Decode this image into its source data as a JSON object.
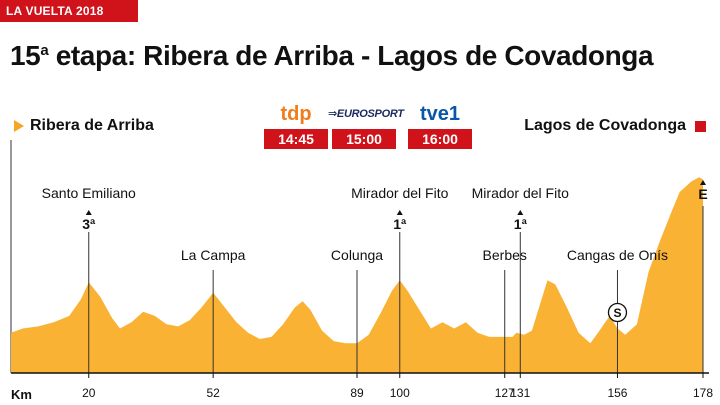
{
  "header": {
    "badge": "LA VUELTA 2018"
  },
  "title": {
    "number": "15",
    "ordinal": "a",
    "text": "etapa: Ribera de Arriba - Lagos de Covadonga"
  },
  "start": {
    "name": "Ribera de Arriba",
    "color": "#f5a623"
  },
  "finish": {
    "name": "Lagos de Covadonga",
    "color": "#d0121b"
  },
  "broadcasts": [
    {
      "logo": "tdp",
      "icon": "tdp-logo",
      "time": "14:45"
    },
    {
      "logo": "EUROSPORT",
      "icon": "eurosport-logo",
      "time": "15:00"
    },
    {
      "logo": "tve1",
      "icon": "tve1-logo",
      "time": "16:00"
    }
  ],
  "chart_data": {
    "type": "area",
    "xlabel": "Km",
    "xlim": [
      0,
      178
    ],
    "x_ticks": [
      20,
      52,
      89,
      100,
      127,
      131,
      156,
      178
    ],
    "fill_color": "#f9b233",
    "profile": [
      [
        0,
        13
      ],
      [
        3,
        15
      ],
      [
        7,
        16
      ],
      [
        11,
        18
      ],
      [
        15,
        21
      ],
      [
        18,
        29
      ],
      [
        20,
        37
      ],
      [
        23,
        30
      ],
      [
        26,
        20
      ],
      [
        28,
        15
      ],
      [
        31,
        18
      ],
      [
        34,
        23
      ],
      [
        37,
        21
      ],
      [
        40,
        17
      ],
      [
        43,
        16
      ],
      [
        46,
        19
      ],
      [
        49,
        25
      ],
      [
        52,
        32
      ],
      [
        55,
        25
      ],
      [
        58,
        18
      ],
      [
        61,
        13
      ],
      [
        64,
        10
      ],
      [
        67,
        11
      ],
      [
        70,
        17
      ],
      [
        73,
        25
      ],
      [
        75,
        28
      ],
      [
        77,
        24
      ],
      [
        80,
        14
      ],
      [
        83,
        9
      ],
      [
        86,
        8
      ],
      [
        89,
        8
      ],
      [
        92,
        12
      ],
      [
        95,
        22
      ],
      [
        98,
        33
      ],
      [
        100,
        38
      ],
      [
        102,
        33
      ],
      [
        105,
        24
      ],
      [
        108,
        15
      ],
      [
        111,
        18
      ],
      [
        114,
        15
      ],
      [
        117,
        18
      ],
      [
        120,
        13
      ],
      [
        123,
        11
      ],
      [
        125,
        11
      ],
      [
        127,
        11
      ],
      [
        129,
        11
      ],
      [
        130,
        13
      ],
      [
        132,
        12
      ],
      [
        134,
        14
      ],
      [
        137,
        32
      ],
      [
        138,
        38
      ],
      [
        140,
        36
      ],
      [
        143,
        25
      ],
      [
        146,
        13
      ],
      [
        149,
        8
      ],
      [
        151,
        13
      ],
      [
        154,
        21
      ],
      [
        156,
        15
      ],
      [
        158,
        12
      ],
      [
        161,
        17
      ],
      [
        164,
        42
      ],
      [
        167,
        57
      ],
      [
        170,
        71
      ],
      [
        172,
        80
      ],
      [
        175,
        85
      ],
      [
        177,
        87
      ],
      [
        178,
        86
      ]
    ],
    "y_max": 100,
    "places": [
      {
        "name": "Santo Emiliano",
        "km": 20,
        "climb": "3ª"
      },
      {
        "name": "La Campa",
        "km": 52,
        "climb": ""
      },
      {
        "name": "Colunga",
        "km": 89,
        "climb": ""
      },
      {
        "name": "Mirador del Fito",
        "km": 100,
        "climb": "1ª"
      },
      {
        "name": "Berbes",
        "km": 127,
        "climb": ""
      },
      {
        "name": "Mirador del Fito",
        "km": 131,
        "climb": "1ª"
      },
      {
        "name": "Cangas de Onís",
        "km": 156,
        "climb": "",
        "marker": "S"
      },
      {
        "name": "",
        "km": 178,
        "climb": "E"
      }
    ]
  }
}
